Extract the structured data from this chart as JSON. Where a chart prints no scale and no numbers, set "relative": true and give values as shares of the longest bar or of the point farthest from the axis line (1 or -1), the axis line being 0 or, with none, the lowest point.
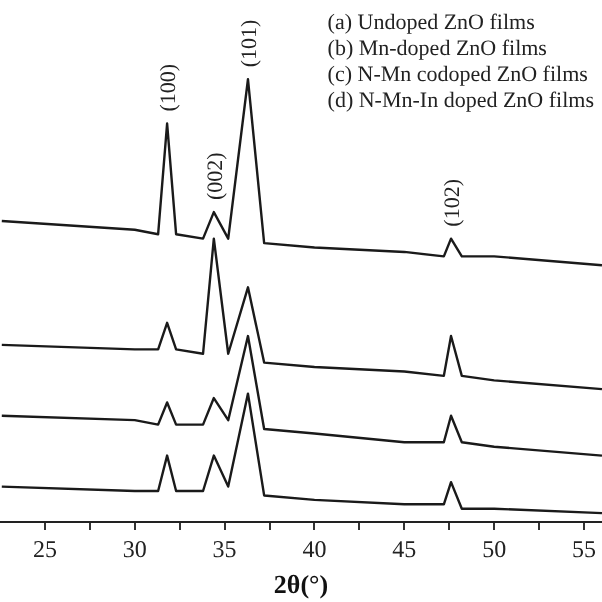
{
  "chart_data": {
    "type": "line",
    "relative": true,
    "xlabel": "2θ(°)",
    "xlim": [
      22.5,
      56
    ],
    "xticks": [
      25,
      {
        "value": 27.5,
        "label": null
      },
      30,
      {
        "value": 32.5,
        "label": null
      },
      35,
      {
        "value": 37.5,
        "label": null
      },
      40,
      {
        "value": 42.5,
        "label": null
      },
      45,
      {
        "value": 47.5,
        "label": null
      },
      50,
      {
        "value": 52.5,
        "label": null
      },
      55
    ],
    "x": [
      22.6,
      30,
      31.3,
      31.8,
      32.3,
      33.8,
      34.4,
      35.2,
      36.3,
      37.2,
      40,
      45,
      47.2,
      47.6,
      48.2,
      50,
      56
    ],
    "series": [
      {
        "color": "#1a1a1a",
        "values": [
          0.68,
          0.66,
          0.65,
          0.9,
          0.65,
          0.64,
          0.7,
          0.64,
          1.0,
          0.63,
          0.62,
          0.61,
          0.6,
          0.64,
          0.6,
          0.6,
          0.58
        ]
      },
      {
        "color": "#1a1a1a",
        "values": [
          0.4,
          0.39,
          0.39,
          0.45,
          0.39,
          0.38,
          0.64,
          0.38,
          0.53,
          0.36,
          0.35,
          0.34,
          0.33,
          0.42,
          0.33,
          0.32,
          0.3
        ]
      },
      {
        "color": "#1a1a1a",
        "values": [
          0.24,
          0.23,
          0.22,
          0.27,
          0.22,
          0.22,
          0.28,
          0.23,
          0.42,
          0.21,
          0.2,
          0.18,
          0.18,
          0.24,
          0.18,
          0.17,
          0.15
        ]
      },
      {
        "color": "#1a1a1a",
        "values": [
          0.08,
          0.07,
          0.07,
          0.15,
          0.07,
          0.07,
          0.15,
          0.08,
          0.29,
          0.06,
          0.05,
          0.04,
          0.04,
          0.09,
          0.03,
          0.03,
          0.02
        ]
      }
    ],
    "annotations": [
      "(a) Undoped ZnO films",
      "(b) Mn-doped ZnO films",
      "(c) N-Mn codoped ZnO films",
      "(d) N-Mn-In doped ZnO films",
      {
        "text": "(100)",
        "x": 31.8,
        "y": 0.9
      },
      {
        "text": "(002)",
        "x": 34.4,
        "y": 0.7
      },
      {
        "text": "(101)",
        "x": 36.3,
        "y": 1.0
      },
      {
        "text": "(102)",
        "x": 47.6,
        "y": 0.64
      }
    ],
    "marker": "none",
    "line_style": "solid",
    "grid": false
  }
}
